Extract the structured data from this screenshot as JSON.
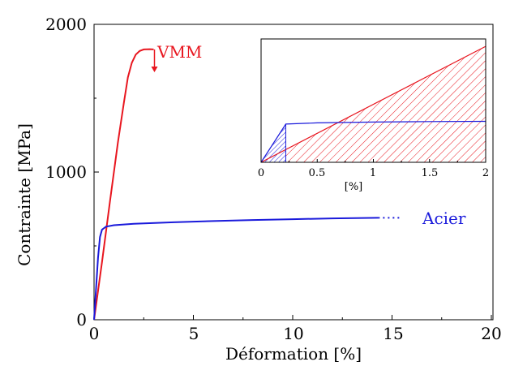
{
  "chart_data": [
    {
      "type": "line",
      "xlabel": "Déformation [%]",
      "ylabel": "Contrainte [MPa]",
      "xlim": [
        0,
        20
      ],
      "ylim": [
        0,
        2000
      ],
      "xticks": [
        "0",
        "5",
        "10",
        "15",
        "20"
      ],
      "yticks": [
        "0",
        "1000",
        "2000"
      ],
      "grid": false,
      "series": [
        {
          "name": "VMM",
          "color": "#e8161f",
          "x": [
            0,
            0.4,
            0.8,
            1.2,
            1.5,
            1.7,
            1.9,
            2.1,
            2.3,
            2.5,
            2.8,
            3.0
          ],
          "y": [
            0,
            390,
            800,
            1200,
            1470,
            1640,
            1740,
            1795,
            1820,
            1830,
            1832,
            1830
          ],
          "annotation": "rupture-arrow"
        },
        {
          "name": "Acier",
          "color": "#1a1adb",
          "x": [
            0,
            0.2,
            0.3,
            0.4,
            0.6,
            1,
            2,
            4,
            6,
            8,
            10,
            12,
            14.3
          ],
          "y": [
            0,
            420,
            560,
            610,
            630,
            640,
            650,
            660,
            668,
            675,
            681,
            686,
            690
          ],
          "continuation": "dotted"
        }
      ]
    },
    {
      "type": "area",
      "xlabel": "[%]",
      "xlim": [
        0,
        2
      ],
      "xticks": [
        "0",
        "0.5",
        "1",
        "1.5",
        "2"
      ],
      "series": [
        {
          "name": "VMM",
          "color": "#e8161f",
          "fill": "hatched",
          "x": [
            0,
            2
          ],
          "y": [
            0,
            1880
          ]
        },
        {
          "name": "Acier",
          "color": "#1a1adb",
          "fill": "hatched",
          "x": [
            0,
            0.22,
            0.5,
            1,
            1.5,
            2
          ],
          "y": [
            0,
            620,
            640,
            652,
            660,
            665
          ]
        }
      ]
    }
  ]
}
